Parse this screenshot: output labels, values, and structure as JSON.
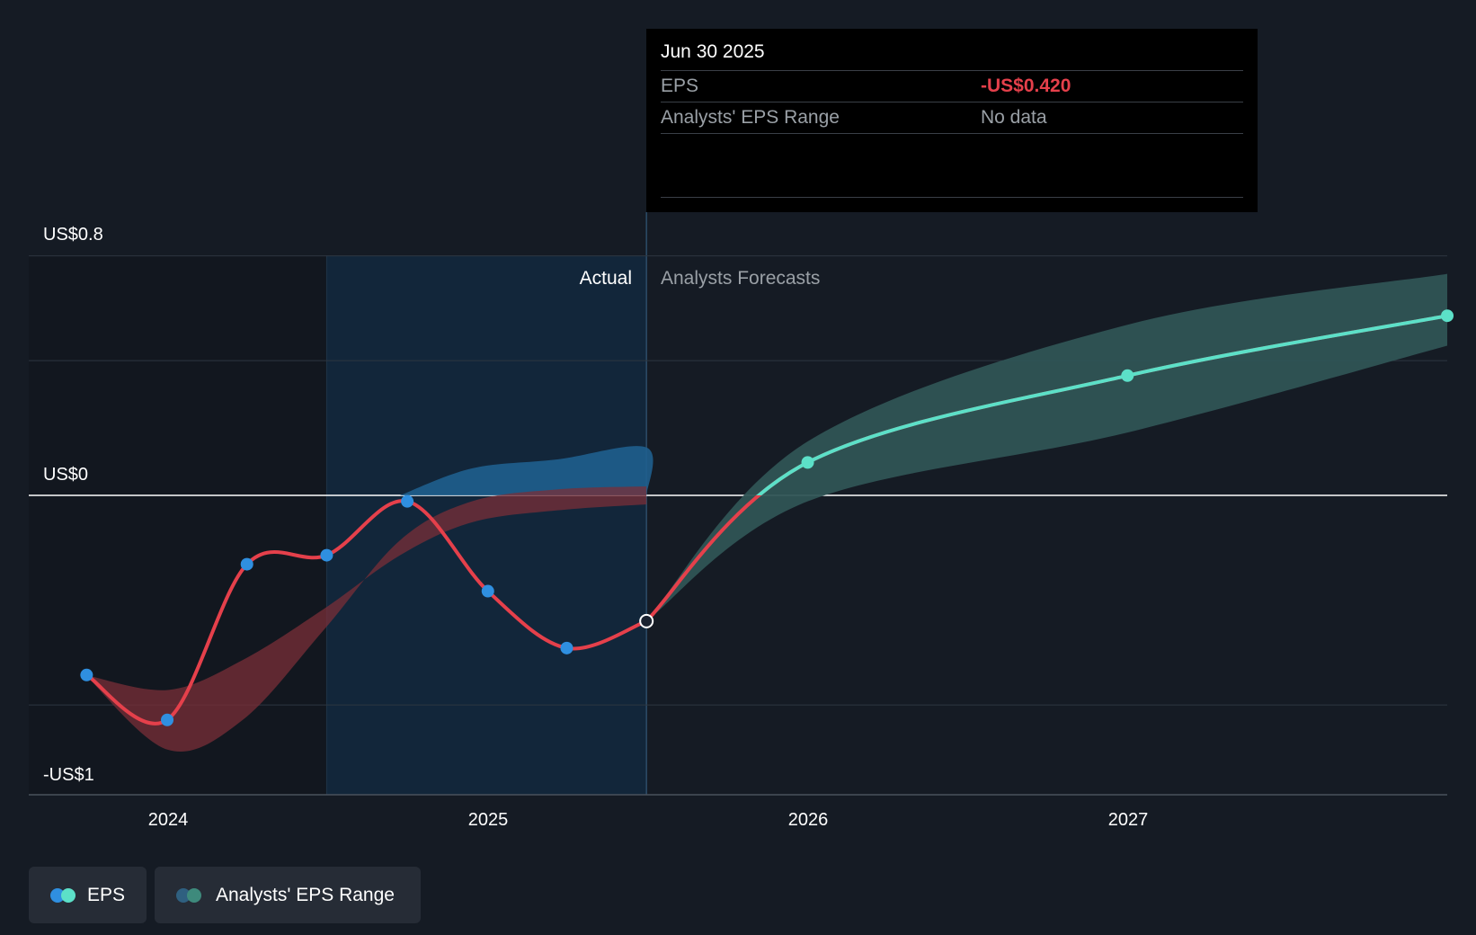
{
  "chart_data": {
    "type": "line",
    "y_axis_labels": [
      "US$0.8",
      "US$0",
      "-US$1"
    ],
    "x_ticks": [
      "2024",
      "2025",
      "2026",
      "2027"
    ],
    "section_labels": {
      "actual": "Actual",
      "forecast": "Analysts Forecasts"
    },
    "series": [
      {
        "name": "EPS",
        "points": [
          {
            "x": "2023-09-30",
            "y": -0.6
          },
          {
            "x": "2023-12-31",
            "y": -0.75
          },
          {
            "x": "2024-03-31",
            "y": -0.23
          },
          {
            "x": "2024-06-30",
            "y": -0.2
          },
          {
            "x": "2024-09-30",
            "y": -0.02
          },
          {
            "x": "2024-12-31",
            "y": -0.32
          },
          {
            "x": "2025-03-31",
            "y": -0.51
          },
          {
            "x": "2025-06-30",
            "y": -0.42
          }
        ]
      },
      {
        "name": "EPS forecast",
        "points": [
          {
            "x": "2025-06-30",
            "y": -0.42
          },
          {
            "x": "2025-12-31",
            "y": 0.11
          },
          {
            "x": "2026-12-31",
            "y": 0.4
          },
          {
            "x": "2027-12-31",
            "y": 0.6
          }
        ]
      },
      {
        "name": "Analysts' EPS Range",
        "points": [
          {
            "x": "2025-06-30",
            "lo": -0.42,
            "hi": -0.42
          },
          {
            "x": "2025-12-31",
            "lo": -0.02,
            "hi": 0.18
          },
          {
            "x": "2026-12-31",
            "lo": 0.21,
            "hi": 0.57
          },
          {
            "x": "2027-12-31",
            "lo": 0.5,
            "hi": 0.74
          }
        ]
      }
    ],
    "y_range": [
      -1.0,
      0.8
    ],
    "colors": {
      "background": "#151b24",
      "eps_actual": "#e5404b",
      "eps_marker": "#2f8fe0",
      "forecast": "#5ce0c8",
      "forecast_band": "#2f5455",
      "actual_region": "#12263a",
      "zero_line": "#ffffff"
    }
  },
  "tooltip": {
    "date": "Jun 30 2025",
    "rows": [
      {
        "label": "EPS",
        "value": "-US$0.420"
      },
      {
        "label": "Analysts' EPS Range",
        "value": "No data"
      }
    ]
  },
  "legend": [
    {
      "label": "EPS",
      "colors": [
        "#2f8fe0",
        "#5ce0c8"
      ]
    },
    {
      "label": "Analysts' EPS Range",
      "colors": [
        "#2f6080",
        "#3e8a7c"
      ]
    }
  ]
}
